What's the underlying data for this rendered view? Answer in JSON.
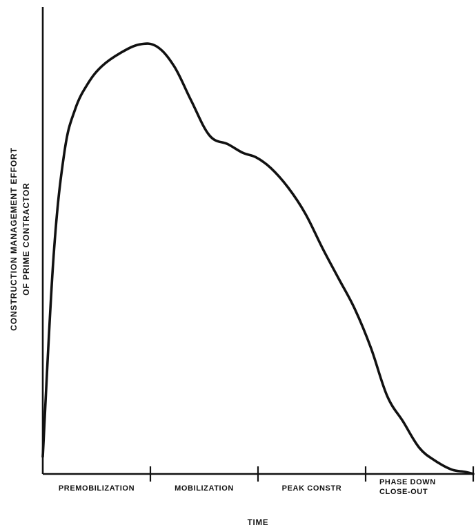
{
  "chart_data": {
    "type": "line",
    "title": "",
    "xlabel": "TIME",
    "ylabel_lines": [
      "CONSTRUCTION MANAGEMENT EFFORT",
      "OF PRIME CONTRACTOR"
    ],
    "phases": [
      "PREMOBILIZATION",
      "MOBILIZATION",
      "PEAK CONSTR",
      "PHASE DOWN CLOSE-OUT"
    ],
    "phase_labels": [
      [
        "PREMOBILIZATION"
      ],
      [
        "MOBILIZATION"
      ],
      [
        "PEAK CONSTR"
      ],
      [
        "PHASE DOWN",
        "CLOSE-OUT"
      ]
    ],
    "x_tick_positions": [
      1,
      2,
      3,
      4
    ],
    "xlim": [
      0,
      4
    ],
    "ylim": [
      0,
      100
    ],
    "grid": false,
    "legend": "none",
    "series": [
      {
        "x": [
          0.0,
          0.1,
          0.2,
          0.3,
          0.42,
          0.55,
          0.72,
          0.9,
          1.06,
          1.22,
          1.38,
          1.55,
          1.72,
          1.86,
          1.98,
          2.12,
          2.28,
          2.44,
          2.6,
          2.75,
          2.9,
          3.05,
          3.2,
          3.35,
          3.5,
          3.65,
          3.8,
          3.92,
          4.0
        ],
        "y": [
          4,
          50,
          74,
          84,
          90,
          94,
          97,
          99,
          98.5,
          94,
          86,
          78,
          76,
          74,
          73,
          70.5,
          66,
          60,
          52,
          45,
          38,
          29,
          18,
          12,
          6,
          3,
          1,
          0.5,
          0
        ]
      }
    ],
    "style": {
      "line_color": "#111111",
      "axis_color": "#111111",
      "background": "#ffffff"
    }
  }
}
